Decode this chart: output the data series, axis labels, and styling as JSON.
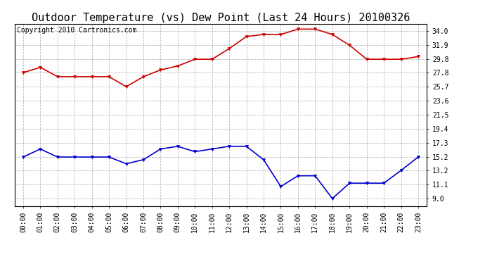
{
  "title": "Outdoor Temperature (vs) Dew Point (Last 24 Hours) 20100326",
  "copyright": "Copyright 2010 Cartronics.com",
  "x_labels": [
    "00:00",
    "01:00",
    "02:00",
    "03:00",
    "04:00",
    "05:00",
    "06:00",
    "07:00",
    "08:00",
    "09:00",
    "10:00",
    "11:00",
    "12:00",
    "13:00",
    "14:00",
    "15:00",
    "16:00",
    "17:00",
    "18:00",
    "19:00",
    "20:00",
    "21:00",
    "22:00",
    "23:00"
  ],
  "temp_data": [
    27.8,
    28.6,
    27.2,
    27.2,
    27.2,
    27.2,
    25.7,
    27.2,
    28.2,
    28.8,
    29.8,
    29.8,
    31.4,
    33.2,
    33.5,
    33.5,
    34.3,
    34.3,
    33.5,
    31.9,
    29.8,
    29.8,
    29.8,
    30.2
  ],
  "dew_data": [
    15.2,
    16.4,
    15.2,
    15.2,
    15.2,
    15.2,
    14.2,
    14.8,
    16.4,
    16.8,
    16.0,
    16.4,
    16.8,
    16.8,
    14.8,
    10.8,
    12.4,
    12.4,
    9.0,
    11.3,
    11.3,
    11.3,
    13.2,
    15.2
  ],
  "temp_color": "#cc0000",
  "dew_color": "#0000cc",
  "yticks": [
    9.0,
    11.1,
    13.2,
    15.2,
    17.3,
    19.4,
    21.5,
    23.6,
    25.7,
    27.8,
    29.8,
    31.9,
    34.0
  ],
  "ylim": [
    7.9,
    35.1
  ],
  "background_color": "#ffffff",
  "grid_color": "#bbbbbb",
  "title_fontsize": 11,
  "copyright_fontsize": 7,
  "tick_fontsize": 7,
  "line_width": 1.2,
  "marker_size": 3
}
